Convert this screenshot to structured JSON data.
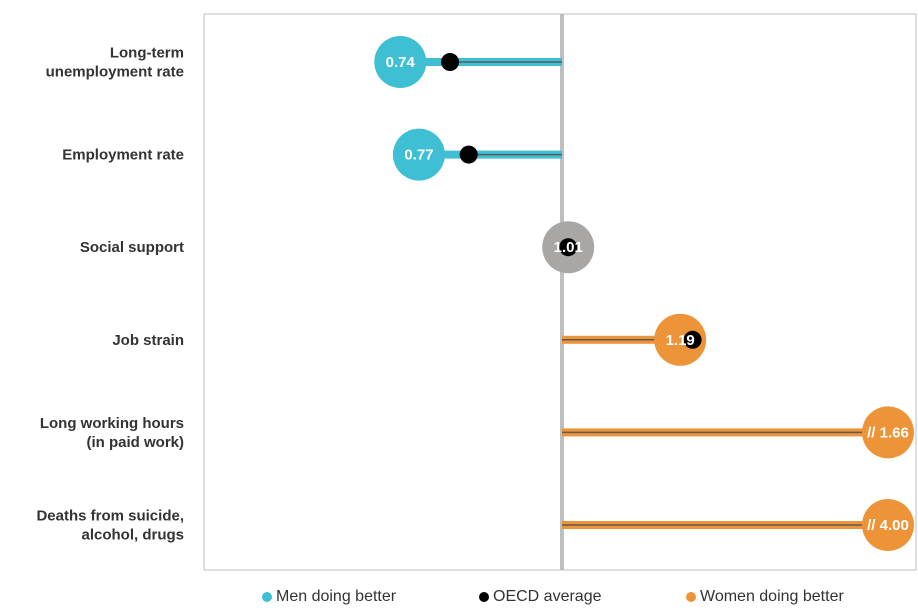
{
  "chart_data": {
    "type": "dot",
    "categories": [
      {
        "label_lines": [
          "Long-term",
          "unemployment rate"
        ],
        "value": 0.74,
        "value_label": "0.74",
        "oecd_average": 0.82,
        "side": "men"
      },
      {
        "label_lines": [
          "Employment rate"
        ],
        "value": 0.77,
        "value_label": "0.77",
        "oecd_average": 0.85,
        "side": "men"
      },
      {
        "label_lines": [
          "Social support"
        ],
        "value": 1.01,
        "value_label": "1.01",
        "oecd_average": 1.01,
        "side": "neutral"
      },
      {
        "label_lines": [
          "Job strain"
        ],
        "value": 1.19,
        "value_label": "1.19",
        "oecd_average": 1.21,
        "side": "women"
      },
      {
        "label_lines": [
          "Long working hours",
          "(in paid work)"
        ],
        "value": 1.66,
        "value_label": "// 1.66",
        "oecd_average": null,
        "side": "women",
        "truncated": true
      },
      {
        "label_lines": [
          "Deaths from suicide,",
          "alcohol, drugs"
        ],
        "value": 4.0,
        "value_label": "// 4.00",
        "oecd_average": null,
        "side": "women",
        "truncated": true
      }
    ],
    "reference_value": 1.0,
    "xlim": [
      0.5,
      1.5
    ],
    "legend": [
      {
        "label": "Men doing better",
        "color": "#3fbfd4"
      },
      {
        "label": "OECD average",
        "color": "#000000"
      },
      {
        "label": "Women doing better",
        "color": "#ee9438"
      }
    ],
    "legend_position": "bottom",
    "colors": {
      "men": "#3fbfd4",
      "women": "#ee9438",
      "neutral": "#a9a6a6",
      "oecd": "#000000",
      "reference_line": "#bfbfbf",
      "frame": "#bfbfbf"
    }
  }
}
